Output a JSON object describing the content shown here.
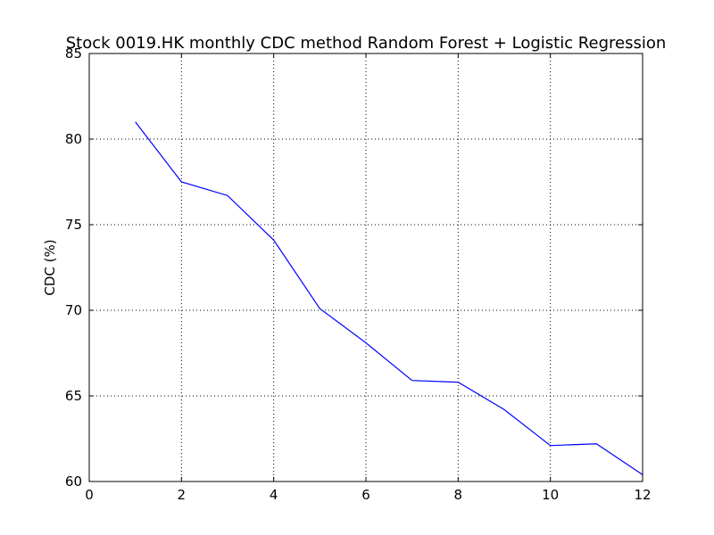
{
  "chart_data": {
    "type": "line",
    "title": "Stock 0019.HK monthly CDC method Random Forest + Logistic Regression",
    "xlabel": "",
    "ylabel": "CDC (%)",
    "xlim": [
      0,
      12
    ],
    "ylim": [
      60,
      85
    ],
    "xticks": [
      "0",
      "2",
      "4",
      "6",
      "8",
      "10",
      "12"
    ],
    "yticks": [
      "60",
      "65",
      "70",
      "75",
      "80",
      "85"
    ],
    "grid": true,
    "series": [
      {
        "color": "#0000ff",
        "x": [
          1,
          2,
          3,
          4,
          5,
          6,
          7,
          8,
          9,
          10,
          11,
          12
        ],
        "y": [
          81.0,
          77.5,
          76.7,
          74.1,
          70.1,
          68.1,
          65.9,
          65.8,
          64.2,
          62.1,
          62.2,
          60.4
        ]
      }
    ]
  }
}
